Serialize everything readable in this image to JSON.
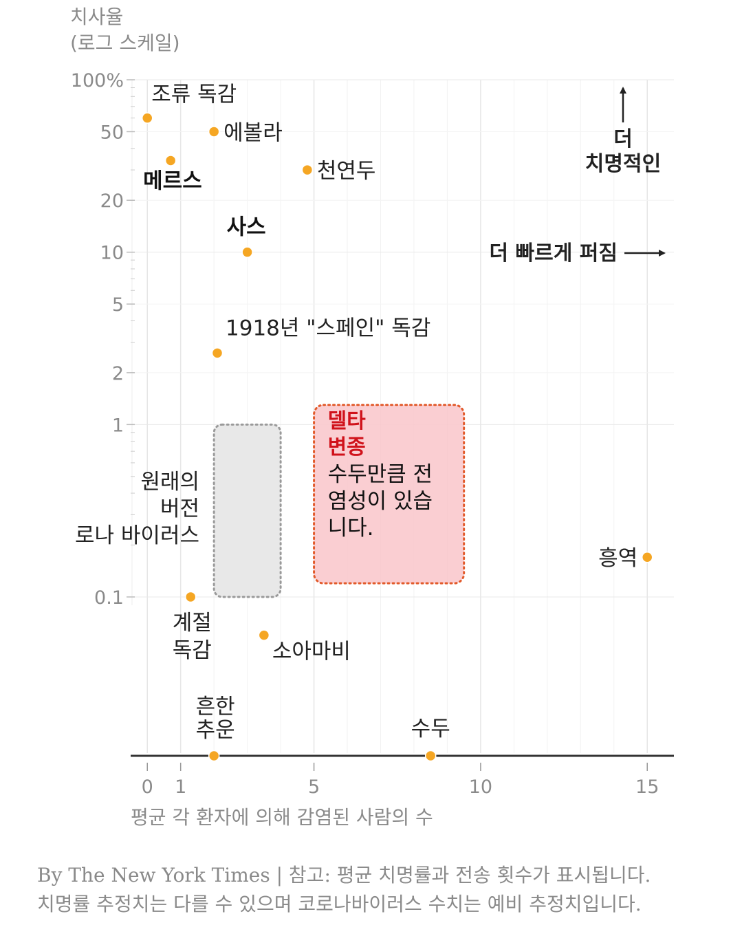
{
  "chart_data": {
    "type": "scatter",
    "ylabel": [
      "치사율",
      "(로그 스케일)"
    ],
    "xlabel": "평균 각 환자에 의해 감염된 사람의 수",
    "x_scale": "linear",
    "y_scale": "log",
    "xlim": [
      -0.5,
      15.8
    ],
    "ylim": [
      0.01,
      100
    ],
    "x_ticks": [
      0,
      1,
      5,
      10,
      15
    ],
    "x_tick_labels": [
      "0",
      "1",
      "5",
      "10",
      "15"
    ],
    "y_ticks": [
      100,
      50,
      20,
      10,
      5,
      2,
      1,
      0.1
    ],
    "y_tick_labels": [
      "100%",
      "50",
      "20",
      "10",
      "5",
      "2",
      "1",
      "0.1"
    ],
    "grid": true,
    "point_color": "#f5a623",
    "points": [
      {
        "label": "조류 독감",
        "x": 0,
        "y": 60,
        "bold": false
      },
      {
        "label": "에볼라",
        "x": 2,
        "y": 50,
        "bold": false
      },
      {
        "label": "메르스",
        "x": 0.7,
        "y": 34,
        "bold": true
      },
      {
        "label": "천연두",
        "x": 4.8,
        "y": 30,
        "bold": false
      },
      {
        "label": "사스",
        "x": 3,
        "y": 10,
        "bold": true
      },
      {
        "label": "1918년 \"스페인\" 독감",
        "x": 2.1,
        "y": 2.6,
        "bold": false
      },
      {
        "label": "흥역",
        "x": 15,
        "y": 0.17,
        "bold": false
      },
      {
        "label": "계절 독감",
        "x": 1.3,
        "y": 0.1,
        "bold": false
      },
      {
        "label": "소아마비",
        "x": 3.5,
        "y": 0.06,
        "bold": false
      },
      {
        "label": "흔한 추운",
        "x": 2,
        "y": null,
        "bold": false
      },
      {
        "label": "수두",
        "x": 8.5,
        "y": null,
        "bold": false
      }
    ],
    "regions": [
      {
        "name": "original-coronavirus",
        "label": "원래의 버전 로나 바이러스",
        "x": [
          2,
          4
        ],
        "y": [
          0.1,
          1
        ],
        "color": "#e8e8e8"
      },
      {
        "name": "delta-variant",
        "title": "델타 변종",
        "label": "수두만큼 전 염성이 있습 니다.",
        "x": [
          5,
          9.5
        ],
        "y": [
          0.12,
          1.3
        ],
        "color": "#f9c6ca",
        "title_color": "#d0121b"
      }
    ],
    "annotations": {
      "y_arrow": "더 치명적인",
      "x_arrow": "더 빠르게 퍼짐"
    }
  },
  "labels": {
    "original_lines": [
      "원래의",
      "버전",
      "로나 바이러스"
    ],
    "delta_title_lines": [
      "델타",
      "변종"
    ],
    "delta_body_lines": [
      "수두만큼 전",
      "염성이 있습",
      "니다."
    ],
    "seasonal_flu_lines": [
      "계절",
      "독감"
    ],
    "common_cold_lines": [
      "흔한",
      "추운"
    ],
    "y_arrow_lines": [
      "더",
      "치명적인"
    ]
  },
  "footer": {
    "line1": "By The New York Times | 참고: 평균 치명률과 전송 횟수가 표시됩니다.",
    "line2": "치명률 추정치는 다를 수 있으며 코로나바이러스 수치는 예비 추정치입니다."
  }
}
